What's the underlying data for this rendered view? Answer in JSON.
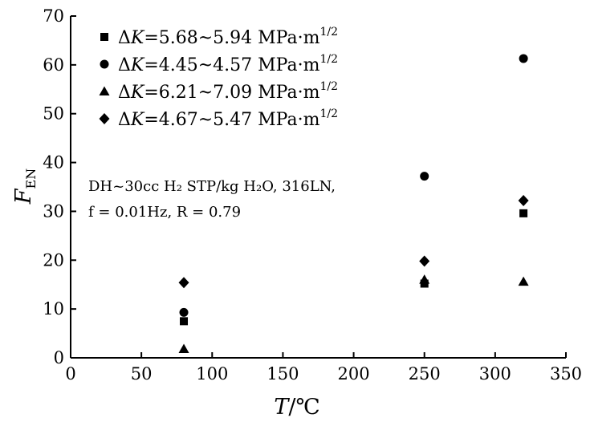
{
  "chart_data": {
    "type": "scatter",
    "xlabel": "T/℃",
    "ylabel": "F_EN",
    "xlim": [
      0,
      350
    ],
    "ylim": [
      0,
      70
    ],
    "x_ticks": [
      0,
      50,
      100,
      150,
      200,
      250,
      300,
      350
    ],
    "y_ticks": [
      0,
      10,
      20,
      30,
      40,
      50,
      60,
      70
    ],
    "grid": false,
    "legend_position": "top-left",
    "annotation": {
      "line1": "DH~30cc H₂ STP/kg H₂O,  316LN,",
      "line2": "f = 0.01Hz, R = 0.79"
    },
    "series": [
      {
        "name": "ΔK=5.68~5.94 MPa·m¹ᐟ²",
        "marker": "square",
        "points": [
          {
            "x": 80,
            "y": 7.5
          },
          {
            "x": 250,
            "y": 15.2
          },
          {
            "x": 320,
            "y": 29.6
          }
        ]
      },
      {
        "name": "ΔK=4.45~4.57 MPa·m¹ᐟ²",
        "marker": "circle",
        "points": [
          {
            "x": 80,
            "y": 9.3
          },
          {
            "x": 250,
            "y": 37.2
          },
          {
            "x": 320,
            "y": 61.3
          }
        ]
      },
      {
        "name": "ΔK=6.21~7.09 MPa·m¹ᐟ²",
        "marker": "triangle",
        "points": [
          {
            "x": 80,
            "y": 1.8
          },
          {
            "x": 250,
            "y": 16.0
          },
          {
            "x": 320,
            "y": 15.6
          }
        ]
      },
      {
        "name": "ΔK=4.67~5.47 MPa·m¹ᐟ²",
        "marker": "diamond",
        "points": [
          {
            "x": 80,
            "y": 15.4
          },
          {
            "x": 250,
            "y": 19.8
          },
          {
            "x": 320,
            "y": 32.2
          }
        ]
      }
    ]
  }
}
